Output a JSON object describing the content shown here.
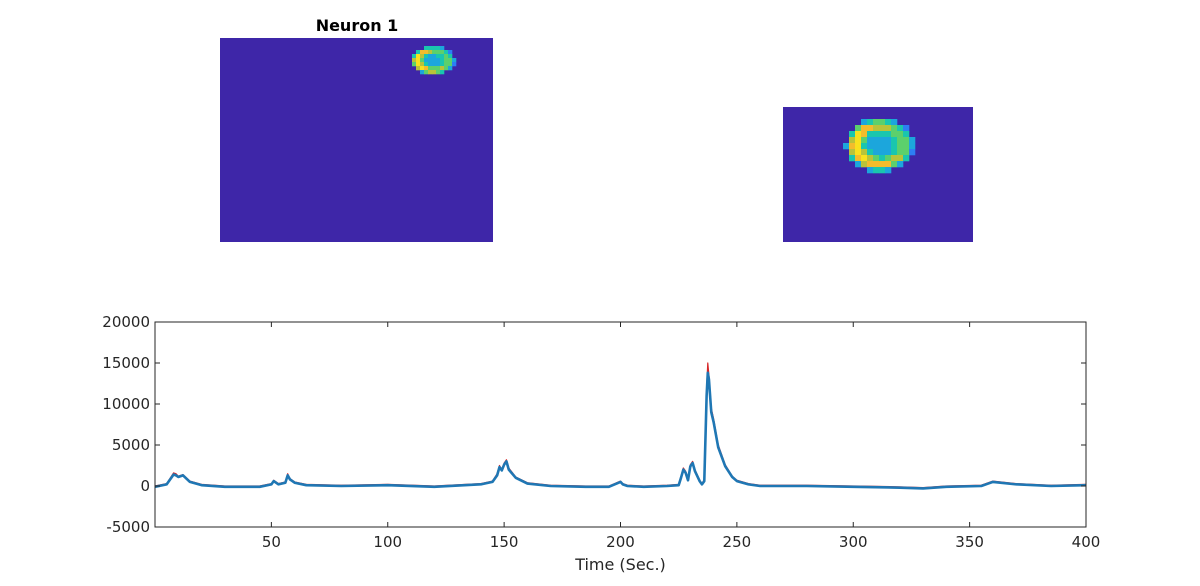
{
  "figure": {
    "footprint_title": "Neuron 1"
  },
  "panels": {
    "footprint": {
      "background": "#3E26A8",
      "blob_center_frac": [
        0.78,
        0.11
      ],
      "blob_size_frac": [
        0.16,
        0.14
      ]
    },
    "zoom": {
      "background": "#3E26A8",
      "blob_center_frac": [
        0.51,
        0.28
      ],
      "blob_size_frac": [
        0.36,
        0.4
      ]
    }
  },
  "colormap": [
    "#3E26A8",
    "#4443E7",
    "#2D7EF4",
    "#1CA6DC",
    "#1AC6AE",
    "#5CD06C",
    "#B9C33A",
    "#F3BC2C",
    "#F9E11D"
  ],
  "chart_data": {
    "type": "line",
    "title": "",
    "xlabel": "Time (Sec.)",
    "ylabel": "",
    "xlim": [
      0,
      400
    ],
    "ylim": [
      -5000,
      20000
    ],
    "xticks": [
      50,
      100,
      150,
      200,
      250,
      300,
      350,
      400
    ],
    "yticks": [
      -5000,
      0,
      5000,
      10000,
      15000,
      20000
    ],
    "xtick_labels": [
      "50",
      "100",
      "150",
      "200",
      "250",
      "300",
      "350",
      "400"
    ],
    "ytick_labels": [
      "-5000",
      "0",
      "5000",
      "10000",
      "15000",
      "20000"
    ],
    "grid": false,
    "series": [
      {
        "color": "#D62728",
        "line_width": 1.2,
        "x": [
          0,
          5,
          8,
          9,
          10,
          12,
          15,
          20,
          30,
          45,
          50,
          51,
          53,
          56,
          57,
          58,
          60,
          65,
          80,
          100,
          120,
          140,
          145,
          147,
          148,
          149,
          150,
          151,
          152,
          155,
          160,
          170,
          185,
          195,
          200,
          201,
          203,
          210,
          220,
          225,
          226,
          227,
          228,
          229,
          230,
          231,
          232,
          234,
          235,
          236,
          237,
          237.5,
          238,
          239,
          240,
          242,
          245,
          248,
          250,
          255,
          260,
          280,
          300,
          320,
          330,
          340,
          355,
          358,
          360,
          370,
          385,
          400
        ],
        "y": [
          0,
          300,
          1600,
          1500,
          1200,
          1400,
          600,
          200,
          0,
          0,
          300,
          700,
          300,
          500,
          1500,
          900,
          500,
          200,
          100,
          200,
          0,
          300,
          600,
          1500,
          2500,
          2000,
          2800,
          3200,
          2200,
          1100,
          400,
          100,
          0,
          0,
          600,
          300,
          100,
          0,
          100,
          200,
          1200,
          2200,
          1800,
          800,
          2600,
          3000,
          2000,
          700,
          300,
          800,
          12000,
          15000,
          13500,
          9500,
          8200,
          5000,
          2600,
          1200,
          700,
          300,
          100,
          100,
          0,
          -100,
          -200,
          0,
          100,
          400,
          600,
          300,
          100,
          200
        ]
      },
      {
        "color": "#1F77B4",
        "line_width": 2.6,
        "x": [
          0,
          5,
          8,
          9,
          10,
          12,
          15,
          20,
          30,
          45,
          50,
          51,
          53,
          56,
          57,
          58,
          60,
          65,
          80,
          100,
          120,
          140,
          145,
          147,
          148,
          149,
          150,
          151,
          152,
          155,
          160,
          170,
          185,
          195,
          200,
          201,
          203,
          210,
          220,
          225,
          226,
          227,
          228,
          229,
          230,
          231,
          232,
          234,
          235,
          236,
          237,
          237.5,
          238,
          239,
          240,
          242,
          245,
          248,
          250,
          255,
          260,
          280,
          300,
          320,
          330,
          340,
          355,
          358,
          360,
          370,
          385,
          400
        ],
        "y": [
          -100,
          200,
          1400,
          1300,
          1100,
          1300,
          500,
          100,
          -100,
          -100,
          200,
          600,
          200,
          400,
          1300,
          800,
          400,
          100,
          0,
          100,
          -100,
          200,
          500,
          1300,
          2300,
          1900,
          2600,
          3000,
          2000,
          1000,
          300,
          0,
          -100,
          -100,
          500,
          200,
          0,
          -100,
          0,
          100,
          1000,
          2000,
          1600,
          700,
          2400,
          2800,
          1800,
          600,
          200,
          600,
          11000,
          13800,
          13000,
          9000,
          7800,
          4700,
          2400,
          1100,
          600,
          200,
          0,
          0,
          -100,
          -200,
          -300,
          -100,
          0,
          300,
          500,
          200,
          0,
          100
        ]
      }
    ]
  }
}
